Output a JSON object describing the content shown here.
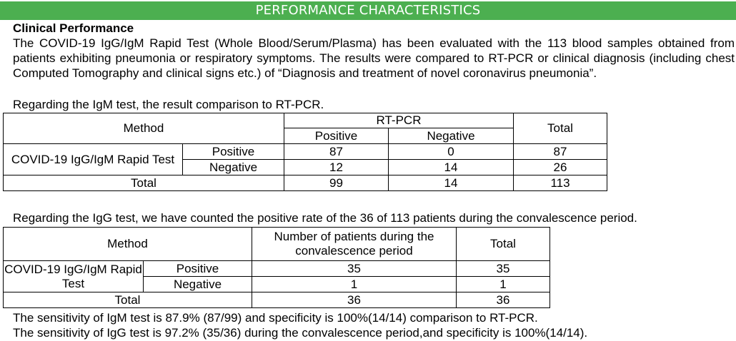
{
  "banner": "PERFORMANCE CHARACTERISTICS",
  "heading": "Clinical Performance",
  "intro": "The COVID-19 IgG/IgM Rapid Test (Whole Blood/Serum/Plasma) has been evaluated with the 113 blood samples obtained from patients exhibiting pneumonia or respiratory symptoms. The results were compared to RT-PCR or clinical diagnosis (including chest Computed Tomography and clinical signs etc.) of “Diagnosis and treatment of novel coronavirus pneumonia”.",
  "igm_intro": "Regarding the IgM test, the result comparison to RT-PCR.",
  "table1": {
    "method": "Method",
    "rtpcr": "RT-PCR",
    "positive": "Positive",
    "negative": "Negative",
    "total": "Total",
    "test_name": "COVID-19 IgG/IgM Rapid Test",
    "rows": [
      {
        "label": "Positive",
        "pos": "87",
        "neg": "0",
        "total": "87"
      },
      {
        "label": "Negative",
        "pos": "12",
        "neg": "14",
        "total": "26"
      }
    ],
    "total_row": {
      "label": "Total",
      "pos": "99",
      "neg": "14",
      "total": "113"
    }
  },
  "igg_intro": "Regarding the IgG test, we have counted the positive rate of the 36 of 113 patients during the convalescence period.",
  "table2": {
    "method": "Method",
    "patients_header": "Number of patients during the convalescence period",
    "total": "Total",
    "test_name": "COVID-19 IgG/IgM Rapid Test",
    "rows": [
      {
        "label": "Positive",
        "count": "35",
        "total": "35"
      },
      {
        "label": "Negative",
        "count": "1",
        "total": "1"
      }
    ],
    "total_row": {
      "label": "Total",
      "count": "36",
      "total": "36"
    }
  },
  "summary_igm": "The sensitivity of IgM test is 87.9% (87/99) and specificity is 100%(14/14) comparison to RT-PCR.",
  "summary_igg": "The sensitivity of IgG test is 97.2% (35/36) during the convalescence period,and specificity is 100%(14/14)."
}
